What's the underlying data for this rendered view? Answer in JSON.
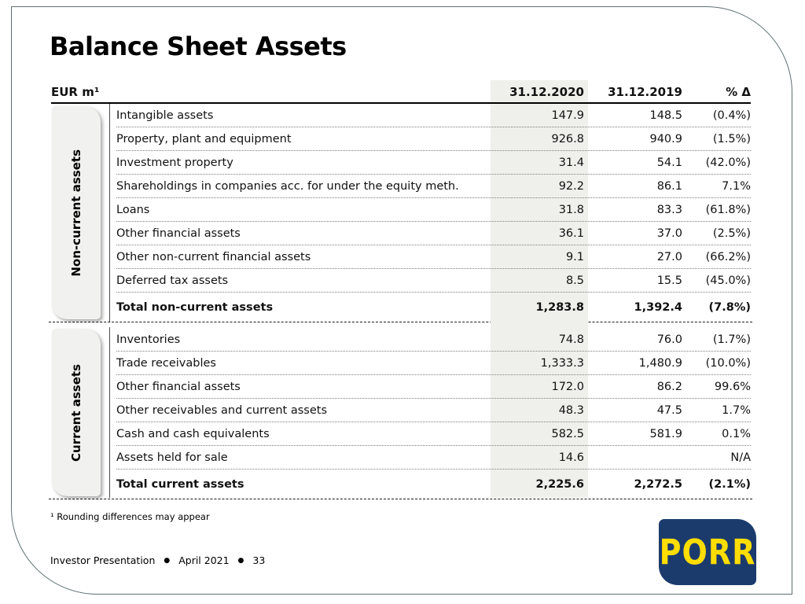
{
  "slide": {
    "title": "Balance Sheet Assets",
    "footnote_marker": "¹",
    "footnote": "Rounding differences may appear",
    "footer": {
      "label": "Investor Presentation",
      "separator": "●",
      "date": "April 2021",
      "page": "33"
    },
    "logo_text": "PORR"
  },
  "colors": {
    "logo_blue": "#1c3b6d",
    "logo_yellow": "#ffdd00",
    "highlight_column": "#efefec",
    "slide_border": "#5e6f72"
  },
  "table": {
    "unit_label": "EUR m¹",
    "columns": [
      "31.12.2020",
      "31.12.2019",
      "% Δ"
    ],
    "sections": [
      {
        "label": "Non-current assets",
        "rows": [
          {
            "label": "Intangible assets",
            "v2020": "147.9",
            "v2019": "148.5",
            "delta": "(0.4%)"
          },
          {
            "label": "Property, plant and equipment",
            "v2020": "926.8",
            "v2019": "940.9",
            "delta": "(1.5%)"
          },
          {
            "label": "Investment property",
            "v2020": "31.4",
            "v2019": "54.1",
            "delta": "(42.0%)"
          },
          {
            "label": "Shareholdings in companies acc. for under the equity meth.",
            "v2020": "92.2",
            "v2019": "86.1",
            "delta": "7.1%"
          },
          {
            "label": "Loans",
            "v2020": "31.8",
            "v2019": "83.3",
            "delta": "(61.8%)"
          },
          {
            "label": "Other financial assets",
            "v2020": "36.1",
            "v2019": "37.0",
            "delta": "(2.5%)"
          },
          {
            "label": "Other non-current financial assets",
            "v2020": "9.1",
            "v2019": "27.0",
            "delta": "(66.2%)"
          },
          {
            "label": "Deferred tax assets",
            "v2020": "8.5",
            "v2019": "15.5",
            "delta": "(45.0%)"
          }
        ],
        "total": {
          "label": "Total non-current assets",
          "v2020": "1,283.8",
          "v2019": "1,392.4",
          "delta": "(7.8%)"
        }
      },
      {
        "label": "Current assets",
        "rows": [
          {
            "label": "Inventories",
            "v2020": "74.8",
            "v2019": "76.0",
            "delta": "(1.7%)"
          },
          {
            "label": "Trade receivables",
            "v2020": "1,333.3",
            "v2019": "1,480.9",
            "delta": "(10.0%)"
          },
          {
            "label": "Other financial assets",
            "v2020": "172.0",
            "v2019": "86.2",
            "delta": "99.6%"
          },
          {
            "label": "Other receivables and current assets",
            "v2020": "48.3",
            "v2019": "47.5",
            "delta": "1.7%"
          },
          {
            "label": "Cash and cash equivalents",
            "v2020": "582.5",
            "v2019": "581.9",
            "delta": "0.1%"
          },
          {
            "label": "Assets held for sale",
            "v2020": "14.6",
            "v2019": "",
            "delta": "N/A"
          }
        ],
        "total": {
          "label": "Total current assets",
          "v2020": "2,225.6",
          "v2019": "2,272.5",
          "delta": "(2.1%)"
        }
      }
    ]
  }
}
